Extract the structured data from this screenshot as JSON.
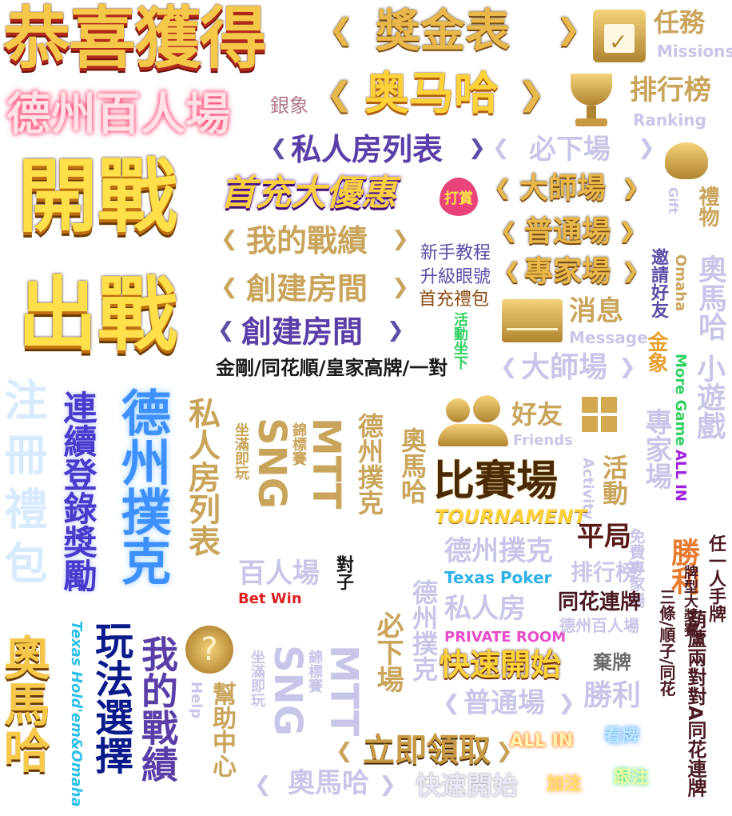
{
  "colors": {
    "gold": "#e8b84a",
    "lavender": "#c8c6e8",
    "purple": "#5a3ea8",
    "pink": "#e8447a",
    "cyan": "#3ec8f0",
    "red": "#e02020",
    "dark": "#4a1a22"
  },
  "headline": {
    "congrats": "恭喜獲得",
    "texas_hundred": "德州百人場",
    "silver": "銀象",
    "start": "開戰",
    "fight": "出戰",
    "bonus_table": "獎金表",
    "obama": "奥马哈"
  },
  "nav": {
    "missions_cn": "任務",
    "missions_en": "Missions",
    "ranking_cn": "排行榜",
    "ranking_en": "Ranking",
    "gift_cn": "禮物",
    "gift_en": "Gift",
    "message_cn": "消息",
    "message_en": "Message",
    "friends_cn": "好友",
    "friends_en": "Friends",
    "activity_cn": "活動",
    "activity_en": "Activity",
    "help_cn": "幫助中心",
    "help_en": "Help"
  },
  "rooms": {
    "private_list": "私人房列表",
    "must_down": "必下場",
    "first_charge": "首充大優惠",
    "tip": "打賞",
    "master": "大師場",
    "my_record": "我的戰績",
    "normal": "普通場",
    "expert": "專家場",
    "create_room": "創建房間",
    "create_room2": "創建房間",
    "newbie": "新手教程",
    "upgrade": "升級眼號",
    "first_gift": "首充禮包",
    "event_down": "活動坐下",
    "hands": "金剛/同花順/皇家高牌/一對",
    "master2": "大師場",
    "invite": "邀請好友",
    "omaha_en": "Omaha",
    "omaha_cn": "奧馬哈",
    "mini_game": "小遊戲",
    "more_game": "More Game",
    "all_in": "ALL IN",
    "golden_elephant": "金象",
    "expert2": "專家場"
  },
  "vertical": {
    "register_gift": "注冊禮包",
    "login_reward": "連續登錄獎勵",
    "texas_poker": "德州撲克",
    "private_room_list": "私人房列表",
    "sng": "SNG",
    "sit_go": "坐滿即玩",
    "mtt": "MTT",
    "timed": "錦標賽",
    "texas2": "德州撲克",
    "obama2": "奧馬哈",
    "obama_big": "奧馬哈",
    "play_select": "玩法選擇",
    "texas_holdem": "Texas Hold'em&Omaha",
    "my_record2": "我的戰績",
    "must_down2": "必下場",
    "texas3": "德州撲克",
    "sng2": "SNG",
    "sit_go2": "坐滿即玩",
    "mtt2": "MTT",
    "timed2": "錦標賽",
    "help_center": "幫助中心",
    "free_expert": "免費專家場",
    "win": "勝利",
    "any_pair": "任一人手牌",
    "gourd": "葫蘆兩對對A同花連牌",
    "bet_type": "牌型大獎賽",
    "three_kind": "三條/順子/同花"
  },
  "misc": {
    "tournament_cn": "比賽場",
    "tournament_en": "TOURNAMENT",
    "draw": "平局",
    "texas_poker_cn": "德州撲克",
    "texas_poker_en": "Texas Poker",
    "ranking2": "排行榜",
    "hundred": "百人場",
    "bet_win": "Bet Win",
    "pair": "對子",
    "private_room_cn": "私人房",
    "private_room_en": "PRIVATE ROOM",
    "straight_flush": "同花連牌",
    "texas_hundred2": "德州百人場",
    "quick_start": "快速開始",
    "fold": "棄牌",
    "normal2": "普通場",
    "win2": "勝利",
    "claim_now": "立即領取",
    "all_in2": "ALL IN",
    "look": "看牌",
    "obama3": "奧馬哈",
    "quick_start2": "快速開始",
    "raise": "加注",
    "call": "跟注"
  }
}
